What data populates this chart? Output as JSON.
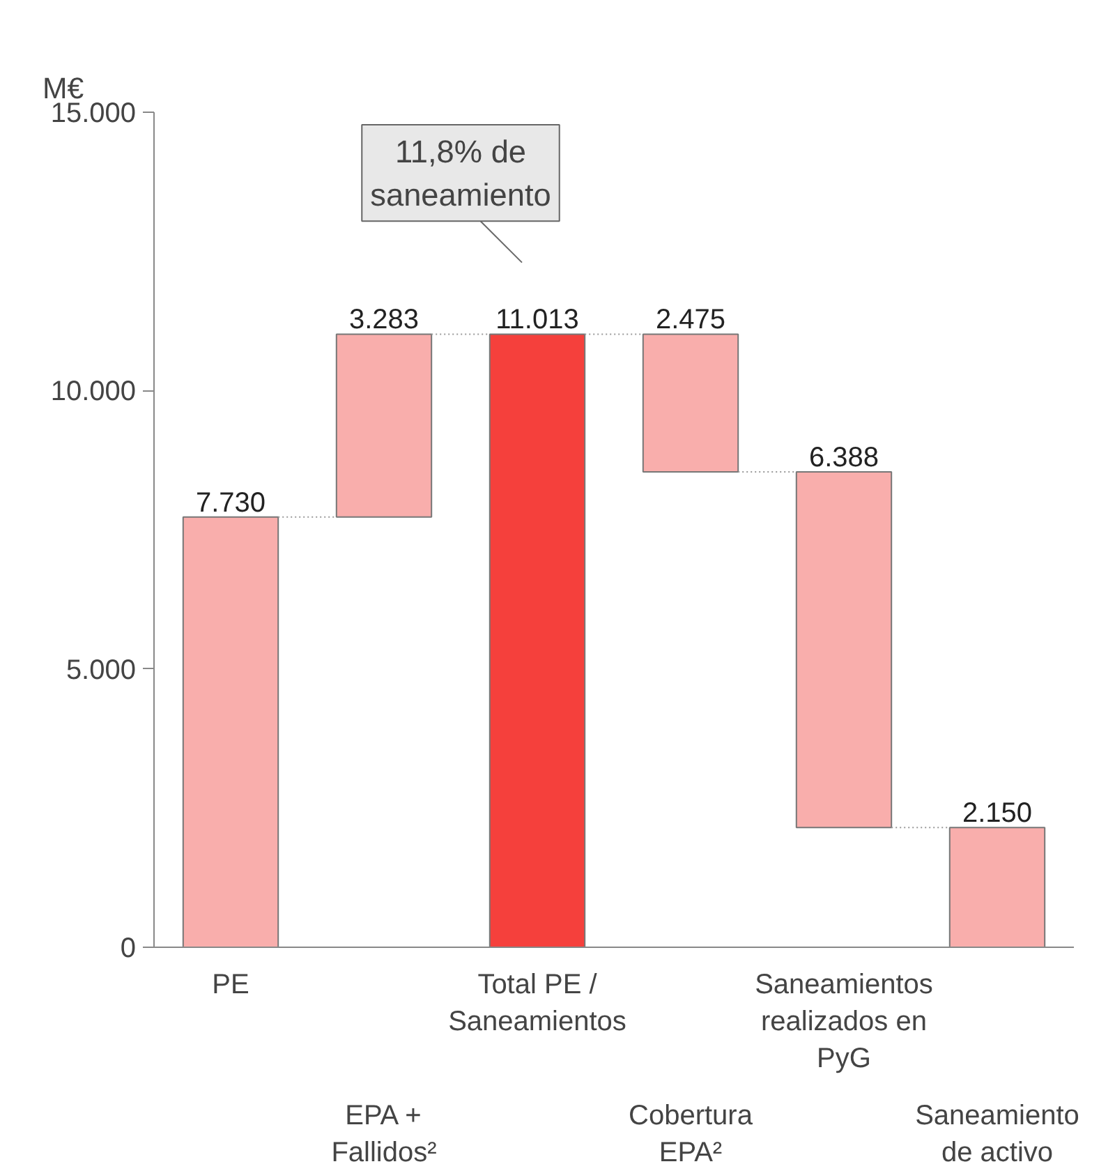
{
  "chart_data": {
    "type": "bar",
    "ylabel": "M€",
    "categories": [
      "PE",
      "EPA + Fallidos²",
      "Total PE / Saneamientos",
      "Cobertura EPA²",
      "Saneamientos realizados en PyG",
      "Saneamiento de activo"
    ],
    "values": [
      7730,
      3283,
      11013,
      2475,
      6388,
      2150
    ],
    "base": [
      0,
      7730,
      0,
      8538,
      2150,
      0
    ],
    "colors": [
      "#f9aeac",
      "#f9aeac",
      "#f5403c",
      "#f9aeac",
      "#f9aeac",
      "#f9aeac"
    ],
    "value_labels": [
      "7.730",
      "3.283",
      "11.013",
      "2.475",
      "6.388",
      "2.150"
    ],
    "ylim": [
      0,
      15000
    ],
    "yticks": [
      0,
      {
        "value": 5000,
        "label": "5.000"
      },
      {
        "value": 10000,
        "label": "10.000"
      },
      {
        "value": 15000,
        "label": "15.000"
      }
    ],
    "annotations": [
      "11,8% de saneamiento"
    ],
    "grid": false
  }
}
